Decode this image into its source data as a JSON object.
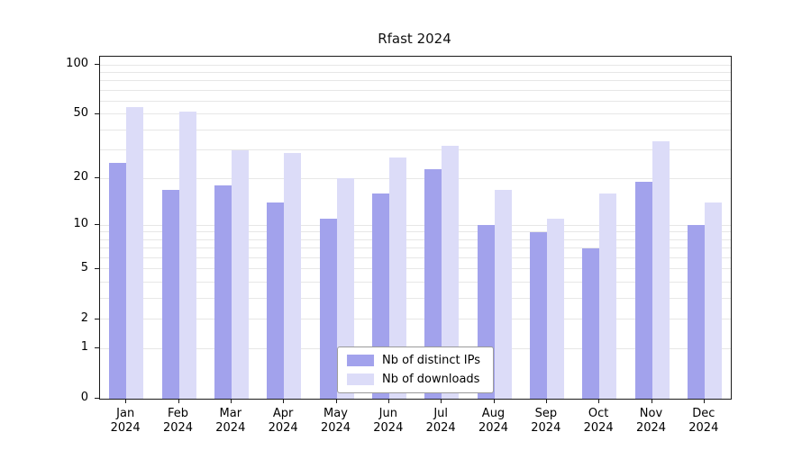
{
  "chart_data": {
    "type": "bar",
    "title": "Rfast 2024",
    "categories": [
      "Jan 2024",
      "Feb 2024",
      "Mar 2024",
      "Apr 2024",
      "May 2024",
      "Jun 2024",
      "Jul 2024",
      "Aug 2024",
      "Sep 2024",
      "Oct 2024",
      "Nov 2024",
      "Dec 2024"
    ],
    "series": [
      {
        "name": "Nb of distinct IPs",
        "color": "#a2a2ec",
        "values": [
          25,
          17,
          18,
          14,
          11,
          16,
          23,
          10,
          9,
          7,
          19,
          10
        ]
      },
      {
        "name": "Nb of downloads",
        "color": "#dcdcf8",
        "values": [
          55,
          52,
          30,
          29,
          20,
          27,
          32,
          17,
          11,
          16,
          34,
          14
        ]
      }
    ],
    "yscale": "log1p",
    "yticks": [
      0,
      1,
      2,
      5,
      10,
      20,
      50,
      100
    ],
    "minor_gridlines": [
      3,
      4,
      6,
      7,
      8,
      9,
      30,
      40,
      60,
      70,
      80,
      90
    ],
    "ylim": [
      0,
      110
    ],
    "grid": true,
    "gridline_color": "#e7e7e7",
    "axis_color": "#1a1a1a",
    "legend_position": "lower center"
  }
}
